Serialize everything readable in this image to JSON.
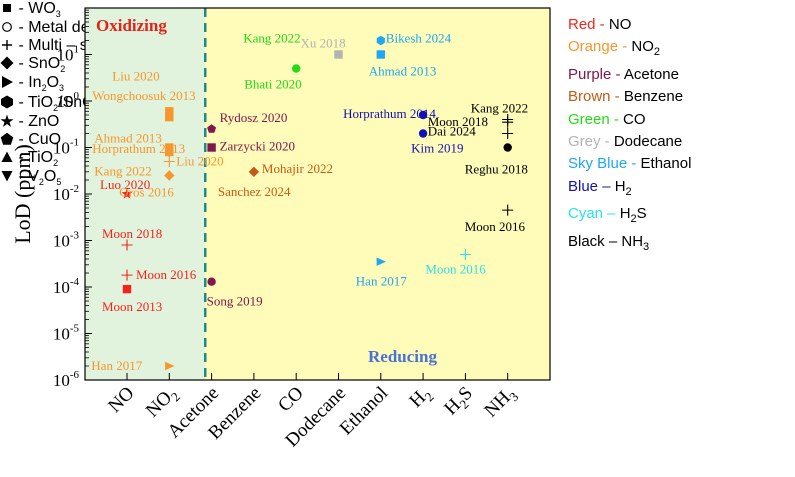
{
  "chart_data": {
    "type": "scatter",
    "ylabel": "LoD (ppm)",
    "yscale": "log",
    "ylim": [
      1e-06,
      100
    ],
    "y_tick_labels": [
      "10",
      "10",
      "10",
      "10",
      "10",
      "10",
      "10",
      "10"
    ],
    "y_tick_exponents": [
      "-6",
      "-5",
      "-4",
      "-3",
      "-2",
      "-1",
      "0",
      "1"
    ],
    "categories": [
      "NO",
      "NO2",
      "Acetone",
      "Benzene",
      "CO",
      "Dodecane",
      "Ethanol",
      "H2",
      "H2S",
      "NH3"
    ],
    "category_labels": [
      {
        "main": "NO",
        "sub": ""
      },
      {
        "main": "NO",
        "sub": "2"
      },
      {
        "main": "Acetone",
        "sub": ""
      },
      {
        "main": "Benzene",
        "sub": ""
      },
      {
        "main": "CO",
        "sub": ""
      },
      {
        "main": "Dodecane",
        "sub": ""
      },
      {
        "main": "Ethanol",
        "sub": ""
      },
      {
        "main": "H",
        "sub": "2"
      },
      {
        "main": "H",
        "sub": "2"
      },
      {
        "main": "NH",
        "sub": "3"
      }
    ],
    "category_label_suffix": [
      "",
      "",
      "",
      "",
      "",
      "",
      "",
      "",
      "S",
      ""
    ],
    "regions": [
      {
        "label": "Oxidizing",
        "from": 0,
        "to": 1.85,
        "color": "#e1f3dc",
        "label_color": "#e2231a"
      },
      {
        "label": "Reducing",
        "from": 1.85,
        "to": 9.85,
        "color": "#fefcb8",
        "label_color": "#4a72d6"
      }
    ],
    "colors": {
      "red": "#f2231c",
      "orange": "#f7962d",
      "purple": "#80184e",
      "brown": "#c65a14",
      "green": "#22dd14",
      "grey": "#b3b3b3",
      "skyblue": "#1ea7f3",
      "blue": "#1212b3",
      "cyan": "#28e3e9",
      "black": "#000000",
      "divider": "#1d8b8b"
    },
    "points": [
      {
        "cat": 0,
        "y": 0.01,
        "marker": "star",
        "color": "red",
        "label": "Luo 2020"
      },
      {
        "cat": 0,
        "y": 0.0008,
        "marker": "plus",
        "color": "red",
        "label": "Moon 2018"
      },
      {
        "cat": 0,
        "y": 0.00018,
        "marker": "plus",
        "color": "red",
        "label": "Moon 2016"
      },
      {
        "cat": 0,
        "y": 9e-05,
        "marker": "square",
        "color": "red",
        "label": "Moon 2013"
      },
      {
        "cat": 1,
        "y": 0.6,
        "marker": "square",
        "color": "orange",
        "label": "Liu 2020"
      },
      {
        "cat": 1,
        "y": 0.45,
        "marker": "square",
        "color": "orange",
        "label": "Wongchoosuk 2013"
      },
      {
        "cat": 1,
        "y": 0.1,
        "marker": "square",
        "color": "orange",
        "label": "Ahmad 2013"
      },
      {
        "cat": 1,
        "y": 0.08,
        "marker": "square",
        "color": "orange",
        "label": "Horprathum 2013"
      },
      {
        "cat": 1,
        "y": 0.05,
        "marker": "plus",
        "color": "orange",
        "label": "Liu 2020"
      },
      {
        "cat": 1,
        "y": 0.025,
        "marker": "diamond",
        "color": "orange",
        "label": "Kang 2022"
      },
      {
        "cat": 1,
        "y": 0.025,
        "marker": "none",
        "color": "orange",
        "label": "Oros 2016"
      },
      {
        "cat": 1,
        "y": 2e-06,
        "marker": "triangle-right",
        "color": "orange",
        "label": "Han 2017"
      },
      {
        "cat": 2,
        "y": 0.25,
        "marker": "pentagon",
        "color": "purple",
        "label": "Rydosz 2020"
      },
      {
        "cat": 2,
        "y": 0.1,
        "marker": "square",
        "color": "purple",
        "label": "Zarzycki 2020"
      },
      {
        "cat": 2,
        "y": 0.00013,
        "marker": "circle",
        "color": "purple",
        "label": "Song 2019"
      },
      {
        "cat": 3,
        "y": 0.03,
        "marker": "diamond",
        "color": "brown",
        "label": "Mohajir 2022"
      },
      {
        "cat": 3,
        "y": 0.03,
        "marker": "none",
        "color": "brown",
        "label": "Sanchez 2024"
      },
      {
        "cat": 4,
        "y": 5,
        "marker": "circle",
        "color": "green",
        "label": "Bhati 2020"
      },
      {
        "cat": 4,
        "y": 10,
        "marker": "none",
        "color": "green",
        "label": "Kang 2022"
      },
      {
        "cat": 5,
        "y": 10,
        "marker": "square",
        "color": "grey",
        "label": "Xu 2018"
      },
      {
        "cat": 6,
        "y": 20,
        "marker": "hexagon",
        "color": "skyblue",
        "label": "Bikesh 2024"
      },
      {
        "cat": 6,
        "y": 10,
        "marker": "square",
        "color": "skyblue",
        "label": "Ahmad 2013"
      },
      {
        "cat": 6,
        "y": 0.00035,
        "marker": "triangle-right",
        "color": "skyblue",
        "label": "Han 2017"
      },
      {
        "cat": 7,
        "y": 0.5,
        "marker": "circle",
        "color": "blue",
        "label": "Horprathum 2014"
      },
      {
        "cat": 7,
        "y": 0.2,
        "marker": "circle",
        "color": "blue",
        "label": "Kim 2019"
      },
      {
        "cat": 8,
        "y": 0.0005,
        "marker": "plus",
        "color": "cyan",
        "label": "Moon 2016"
      },
      {
        "cat": 9,
        "y": 0.4,
        "marker": "plus",
        "color": "black",
        "label": "Kang 2022"
      },
      {
        "cat": 9,
        "y": 0.35,
        "marker": "plus",
        "color": "black",
        "label": "Moon 2018"
      },
      {
        "cat": 9,
        "y": 0.2,
        "marker": "plus",
        "color": "black",
        "label": "Dai 2024"
      },
      {
        "cat": 9,
        "y": 0.1,
        "marker": "circle",
        "color": "black",
        "label": "Reghu 2018"
      },
      {
        "cat": 9,
        "y": 0.0045,
        "marker": "plus",
        "color": "black",
        "label": "Moon 2016"
      }
    ]
  },
  "legend": {
    "colors": [
      {
        "name": "Red",
        "sep": " - ",
        "gas": "NO",
        "sub": "",
        "after": "",
        "color": "#f2231c"
      },
      {
        "name": "Orange",
        "sep": " - ",
        "gas": "NO",
        "sub": "2",
        "after": "",
        "color": "#f7962d"
      },
      {
        "name": "Purple",
        "sep": " - ",
        "gas": "Acetone",
        "sub": "",
        "after": "",
        "color": "#80184e"
      },
      {
        "name": "Brown",
        "sep": " - ",
        "gas": "Benzene",
        "sub": "",
        "after": "",
        "color": "#c65a14"
      },
      {
        "name": "Green",
        "sep": " - ",
        "gas": "CO",
        "sub": "",
        "after": "",
        "color": "#22dd14"
      },
      {
        "name": "Grey",
        "sep": " - ",
        "gas": "Dodecane",
        "sub": "",
        "after": "",
        "color": "#b3b3b3"
      },
      {
        "name": "Sky Blue",
        "sep": " - ",
        "gas": "Ethanol",
        "sub": "",
        "after": "",
        "color": "#1ea7f3"
      },
      {
        "name": "Blue",
        "sep": " – ",
        "gas": "H",
        "sub": "2",
        "after": "",
        "color": "#1212b3"
      },
      {
        "name": "Cyan",
        "sep": " – ",
        "gas": "H",
        "sub": "2",
        "after": "S",
        "color": "#28e3e9"
      },
      {
        "name": "Black",
        "sep": " – ",
        "gas": "NH",
        "sub": "3",
        "after": "",
        "color": "#000000"
      }
    ],
    "markers": [
      {
        "icon": "square",
        "sep": " - ",
        "text": "WO",
        "sub": "3",
        "after": ""
      },
      {
        "icon": "circle-open",
        "sep": " - ",
        "text": "Metal decorated MOs",
        "sub": "",
        "after": ""
      },
      {
        "icon": "plus",
        "sep": " - ",
        "text": "Multi – sensors",
        "sub": "",
        "after": ""
      },
      {
        "icon": "diamond",
        "sep": " - ",
        "text": "SnO",
        "sub": "2",
        "after": ""
      },
      {
        "icon": "triangle-right",
        "sep": " - ",
        "text": "In",
        "sub": "2",
        "after": "O",
        "sub2": "3"
      },
      {
        "icon": "hexagon",
        "sep": " - ",
        "text": "TiO",
        "sub": "2",
        "after": "/SnO",
        "sub2": "2",
        "after2": " heterojunction"
      },
      {
        "icon": "star",
        "sep": " - ",
        "text": "ZnO",
        "sub": "",
        "after": ""
      },
      {
        "icon": "pentagon",
        "sep": " - ",
        "text": "CuO",
        "sub": "",
        "after": ""
      },
      {
        "icon": "triangle-up",
        "sep": " - ",
        "text": "TiO",
        "sub": "2",
        "after": ""
      },
      {
        "icon": "triangle-down",
        "sep": " - ",
        "text": "V",
        "sub": "2",
        "after": "O",
        "sub2": "5"
      }
    ]
  }
}
